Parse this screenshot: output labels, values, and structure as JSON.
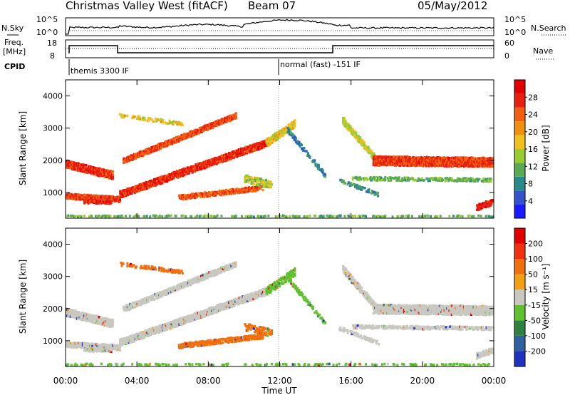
{
  "header": {
    "title": "Christmas Valley West (fitACF)",
    "beam": "Beam 07",
    "date": "05/May/2012"
  },
  "top_panels": {
    "nsky_label": "N.Sky",
    "nsky_ticks": [
      "10^5",
      "10^0"
    ],
    "nsearch_label": "N.Search",
    "nsearch_ticks": [
      "10^5",
      "10^0"
    ],
    "freq_label": [
      "Freq.",
      "[MHz]"
    ],
    "freq_ticks": [
      "18",
      "8"
    ],
    "nave_label": "Nave",
    "nave_ticks": [
      "60",
      "0"
    ],
    "cpid_label": "CPID",
    "cpid_segments": [
      {
        "start_hour": 0,
        "label": "themis 3300 IF"
      },
      {
        "start_hour": 12,
        "label": "normal (fast) -151 IF"
      }
    ]
  },
  "chart_data": [
    {
      "type": "heatmap",
      "name": "power-panel",
      "xlabel": "",
      "ylabel": "Slant Range [km]",
      "xlim": [
        0,
        24
      ],
      "ylim": [
        200,
        4500
      ],
      "y_ticks": [
        1000,
        2000,
        3000,
        4000
      ],
      "colorbar": {
        "label": "Power [dB]",
        "ticks": [
          "4",
          "8",
          "12",
          "16",
          "20",
          "24",
          "28"
        ],
        "colors": [
          "#1a1aff",
          "#3355cc",
          "#2a8a8a",
          "#5aaa55",
          "#99cc33",
          "#f0c020",
          "#f09010",
          "#f06010",
          "#e82010",
          "#e00000"
        ]
      }
    },
    {
      "type": "heatmap",
      "name": "velocity-panel",
      "xlabel": "Time UT",
      "ylabel": "Slant Range [km]",
      "xlim": [
        0,
        24
      ],
      "ylim": [
        200,
        4500
      ],
      "x_ticks": [
        "00:00",
        "04:00",
        "08:00",
        "12:00",
        "16:00",
        "20:00",
        "00:00"
      ],
      "y_ticks": [
        1000,
        2000,
        3000,
        4000
      ],
      "colorbar": {
        "label": "Velocity [m s⁻¹]",
        "ticks": [
          "200",
          "100",
          "50",
          "15",
          "-15",
          "-50",
          "-100",
          "-200"
        ],
        "colors": [
          "#2030c0",
          "#3060a0",
          "#308040",
          "#60c030",
          "#c8c8c0",
          "#f0a010",
          "#f07010",
          "#f03010",
          "#e00000"
        ]
      }
    }
  ]
}
